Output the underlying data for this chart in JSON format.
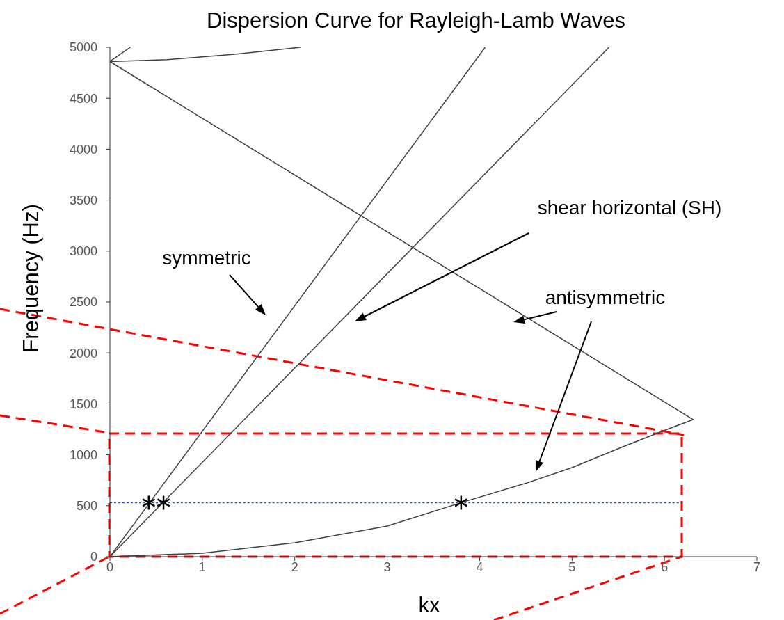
{
  "chart_data": {
    "type": "line",
    "title": "Dispersion Curve for Rayleigh-Lamb Waves",
    "xlabel": "kx",
    "ylabel": "Frequency (Hz)",
    "xlim": [
      0,
      7
    ],
    "ylim": [
      0,
      5000
    ],
    "xticks": [
      0,
      1,
      2,
      3,
      4,
      5,
      6,
      7
    ],
    "yticks": [
      0,
      500,
      1000,
      1500,
      2000,
      2500,
      3000,
      3500,
      4000,
      4500,
      5000
    ],
    "grid": false,
    "marker": "none",
    "line_style": "solid",
    "series": [
      {
        "color": "#404040",
        "x": [
          0,
          4.06
        ],
        "values": [
          0,
          5000
        ]
      },
      {
        "color": "#404040",
        "x": [
          0,
          5.4
        ],
        "values": [
          0,
          5000
        ]
      },
      {
        "color": "#404040",
        "x": [
          0,
          1,
          2,
          3,
          3.8,
          4.5,
          5,
          5.5,
          6,
          6.31,
          0
        ],
        "values": [
          0,
          34,
          137,
          300,
          530,
          720,
          874,
          1060,
          1240,
          1346,
          4860
        ]
      },
      {
        "color": "#404040",
        "x": [
          0.22,
          0,
          0.62,
          1.37,
          2.06
        ],
        "values": [
          5000,
          4860,
          4878,
          4933,
          5000
        ]
      },
      {
        "color": "#2f4b9a",
        "line_style": "dotted",
        "x": [
          0,
          6.2
        ],
        "values": [
          530,
          530
        ]
      },
      {
        "type": "scatter",
        "marker": "cross",
        "color": "#000000",
        "x": [
          0.42,
          0.58,
          3.8
        ],
        "values": [
          530,
          530,
          530
        ]
      }
    ],
    "annotations": [
      "symmetric",
      "shear horizontal (SH)",
      "antisymmetric"
    ]
  }
}
